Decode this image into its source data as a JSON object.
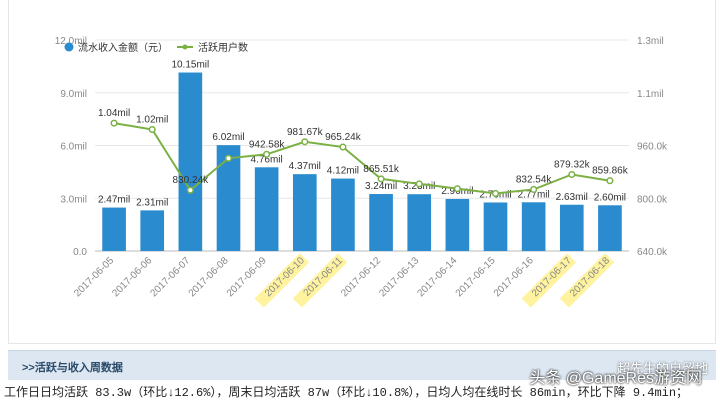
{
  "colors": {
    "bar": "#2b8bcf",
    "line": "#7bb043",
    "axis_text": "#888888",
    "label_text": "#333333",
    "highlight": "#fff3a0"
  },
  "chart_data": {
    "type": "bar",
    "categories": [
      "2017-06-05",
      "2017-06-06",
      "2017-06-07",
      "2017-06-08",
      "2017-06-09",
      "2017-06-10",
      "2017-06-11",
      "2017-06-12",
      "2017-06-13",
      "2017-06-14",
      "2017-06-15",
      "2017-06-16",
      "2017-06-17",
      "2017-06-18"
    ],
    "highlighted_categories": [
      "2017-06-10",
      "2017-06-11",
      "2017-06-17",
      "2017-06-18"
    ],
    "series": [
      {
        "name": "流水收入金额（元）",
        "type": "bar",
        "axis": "left",
        "values": [
          2.47,
          2.31,
          10.15,
          6.02,
          4.76,
          4.37,
          4.12,
          3.24,
          3.23,
          2.96,
          2.76,
          2.77,
          2.63,
          2.6
        ],
        "labels": [
          "2.47mil",
          "2.31mil",
          "10.15mil",
          "6.02mil",
          "4.76mil",
          "4.37mil",
          "4.12mil",
          "3.24mil",
          "3.23mil",
          "2.96mil",
          "2.76mil",
          "2.77mil",
          "2.63mil",
          "2.60mil"
        ]
      },
      {
        "name": "活跃用户数",
        "type": "line",
        "axis": "right",
        "values": [
          1040,
          1020,
          830.24,
          930,
          942.58,
          981.67,
          965.24,
          865.51,
          850,
          835,
          820,
          832.54,
          879.32,
          859.86
        ],
        "labels": [
          "1.04mil",
          "1.02mil",
          "830.24k",
          "",
          "942.58k",
          "981.67k",
          "965.24k",
          "865.51k",
          "",
          "",
          "",
          "832.54k",
          "879.32k",
          "859.86k"
        ]
      }
    ],
    "y_left": {
      "lim": [
        0,
        12
      ],
      "ticks": [
        "0.0",
        "3.0mil",
        "6.0mil",
        "9.0mil",
        "12.0mil"
      ]
    },
    "y_right": {
      "lim": [
        640,
        1300
      ],
      "ticks": [
        "640.0k",
        "800.0k",
        "960.0k",
        "1.1mil",
        "1.3mil"
      ]
    },
    "legend_position": "top-left",
    "grid": true
  },
  "section": {
    "title": ">>活跃与收入周数据"
  },
  "footer": {
    "text": "工作日日均活跃 83.3w（环比↓12.6%），周末日均活跃 87w（环比↓10.8%），日均人均在线时长 86min，环比下降 9.4min；"
  },
  "watermark": {
    "text": "头条 @GameRes游资网",
    "text2": "超先生的自留地"
  }
}
